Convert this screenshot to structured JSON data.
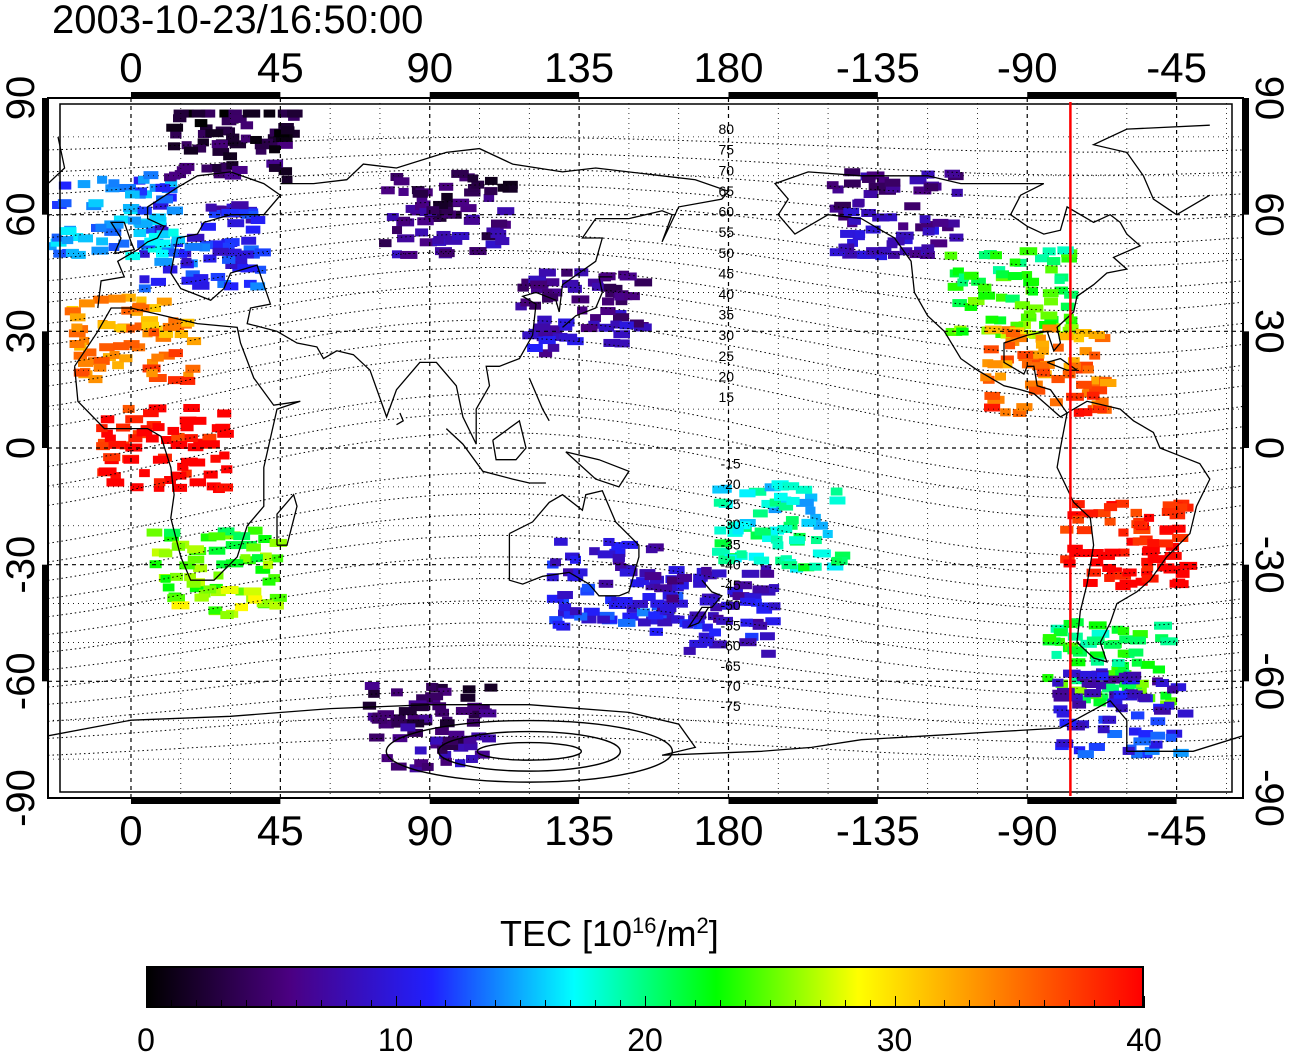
{
  "title": "2003-10-23/16:50:00",
  "map": {
    "top_axis_labels": [
      "0",
      "45",
      "90",
      "135",
      "180",
      "-135",
      "-90",
      "-45"
    ],
    "bottom_axis_labels": [
      "0",
      "45",
      "90",
      "135",
      "180",
      "-135",
      "-90",
      "-45"
    ],
    "left_axis_labels": [
      "90",
      "60",
      "30",
      "0",
      "-30",
      "-60",
      "-90"
    ],
    "right_axis_labels": [
      "90",
      "60",
      "30",
      "0",
      "-30",
      "-60",
      "-90"
    ],
    "magnetic_latitude_labels_north": [
      "80",
      "75",
      "70",
      "65",
      "60",
      "55",
      "50",
      "45",
      "40",
      "35",
      "30",
      "25",
      "20",
      "15"
    ],
    "magnetic_latitude_labels_south": [
      "-15",
      "-20",
      "-25",
      "-30",
      "-35",
      "-40",
      "-45",
      "-50",
      "-55",
      "-60",
      "-65",
      "-70",
      "-75"
    ],
    "longitude_range": [
      -25,
      335
    ],
    "latitude_range": [
      -90,
      90
    ],
    "subsolar_meridian_longitude": -77,
    "marker_color": "#ff0000"
  },
  "colorbar": {
    "title_prefix": "TEC  [10",
    "title_sup1": "16",
    "title_mid": "/m",
    "title_sup2": "2",
    "title_suffix": "]",
    "tick_labels": [
      "0",
      "10",
      "20",
      "30",
      "40"
    ],
    "range": [
      0,
      40
    ],
    "colors": [
      "#000000",
      "#4b0082",
      "#2020ff",
      "#00ffff",
      "#00ff00",
      "#ffff00",
      "#ff7f00",
      "#ff0000"
    ]
  },
  "tec_regions": [
    {
      "name": "europe",
      "lon": 20,
      "lat": 52,
      "tec": 11
    },
    {
      "name": "north-atlantic",
      "lon": -5,
      "lat": 60,
      "tec": 14
    },
    {
      "name": "north-africa",
      "lon": 0,
      "lat": 28,
      "tec": 34
    },
    {
      "name": "west-africa",
      "lon": 10,
      "lat": 0,
      "tec": 40
    },
    {
      "name": "southern-africa",
      "lon": 25,
      "lat": -32,
      "tec": 25
    },
    {
      "name": "east-asia",
      "lon": 135,
      "lat": 35,
      "tec": 7
    },
    {
      "name": "siberia",
      "lon": 95,
      "lat": 60,
      "tec": 5
    },
    {
      "name": "australia",
      "lon": 145,
      "lat": -35,
      "tec": 10
    },
    {
      "name": "new-zealand",
      "lon": 175,
      "lat": -42,
      "tec": 9
    },
    {
      "name": "north-america-mid",
      "lon": -95,
      "lat": 40,
      "tec": 23
    },
    {
      "name": "alaska-canada",
      "lon": -130,
      "lat": 60,
      "tec": 7
    },
    {
      "name": "mexico-caribbean",
      "lon": -85,
      "lat": 20,
      "tec": 35
    },
    {
      "name": "south-america",
      "lon": -60,
      "lat": -25,
      "tec": 40
    },
    {
      "name": "patagonia",
      "lon": -65,
      "lat": -55,
      "tec": 22
    },
    {
      "name": "antarctic-peninsula",
      "lon": -62,
      "lat": -68,
      "tec": 10
    },
    {
      "name": "antarctica-east",
      "lon": 90,
      "lat": -72,
      "tec": 5
    },
    {
      "name": "pacific-islands",
      "lon": -165,
      "lat": -20,
      "tec": 18
    },
    {
      "name": "arctic",
      "lon": 30,
      "lat": 80,
      "tec": 3
    }
  ]
}
